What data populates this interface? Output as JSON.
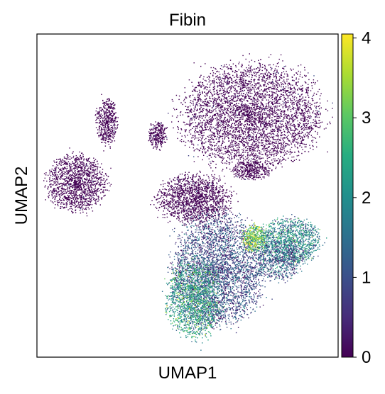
{
  "chart_data": {
    "type": "scatter",
    "title": "Fibin",
    "xlabel": "UMAP1",
    "ylabel": "UMAP2",
    "xticks": [],
    "yticks": [],
    "grid": false,
    "legend": "none",
    "colorbar": {
      "colormap": "viridis",
      "range": [
        0,
        4.05
      ],
      "ticks": [
        0,
        1,
        2,
        3,
        4
      ],
      "tick_labels": [
        "0",
        "1",
        "2",
        "3",
        "4"
      ],
      "stops": [
        "#440154",
        "#472c7a",
        "#3b518b",
        "#2c718e",
        "#21908d",
        "#27ad81",
        "#5cc863",
        "#aadc32",
        "#fde725"
      ]
    },
    "clusters": [
      {
        "name": "",
        "cx": 0.13,
        "cy": 0.54,
        "rx": 0.1,
        "ry": 0.085,
        "n": 1400,
        "expr": 0.05
      },
      {
        "name": "",
        "cx": 0.23,
        "cy": 0.73,
        "rx": 0.035,
        "ry": 0.07,
        "n": 500,
        "expr": 0.05
      },
      {
        "name": "",
        "cx": 0.4,
        "cy": 0.69,
        "rx": 0.03,
        "ry": 0.04,
        "n": 280,
        "expr": 0.05
      },
      {
        "name": "",
        "cx": 0.52,
        "cy": 0.49,
        "rx": 0.12,
        "ry": 0.075,
        "n": 1500,
        "expr": 0.05
      },
      {
        "name": "",
        "cx": 0.71,
        "cy": 0.75,
        "rx": 0.23,
        "ry": 0.16,
        "n": 4200,
        "expr": 0.05
      },
      {
        "name": "",
        "cx": 0.71,
        "cy": 0.58,
        "rx": 0.06,
        "ry": 0.03,
        "n": 350,
        "expr": 0.05
      },
      {
        "name": "",
        "cx": 0.6,
        "cy": 0.27,
        "rx": 0.15,
        "ry": 0.17,
        "n": 3600,
        "expr": 0.9
      },
      {
        "name": "",
        "cx": 0.52,
        "cy": 0.18,
        "rx": 0.09,
        "ry": 0.12,
        "n": 1700,
        "expr": 2.2
      },
      {
        "name": "",
        "cx": 0.72,
        "cy": 0.37,
        "rx": 0.04,
        "ry": 0.04,
        "n": 450,
        "expr": 3.1
      },
      {
        "name": "",
        "cx": 0.84,
        "cy": 0.36,
        "rx": 0.1,
        "ry": 0.07,
        "n": 1300,
        "expr": 1.8
      },
      {
        "name": "",
        "cx": 0.8,
        "cy": 0.3,
        "rx": 0.08,
        "ry": 0.06,
        "n": 600,
        "expr": 1.1
      }
    ]
  }
}
